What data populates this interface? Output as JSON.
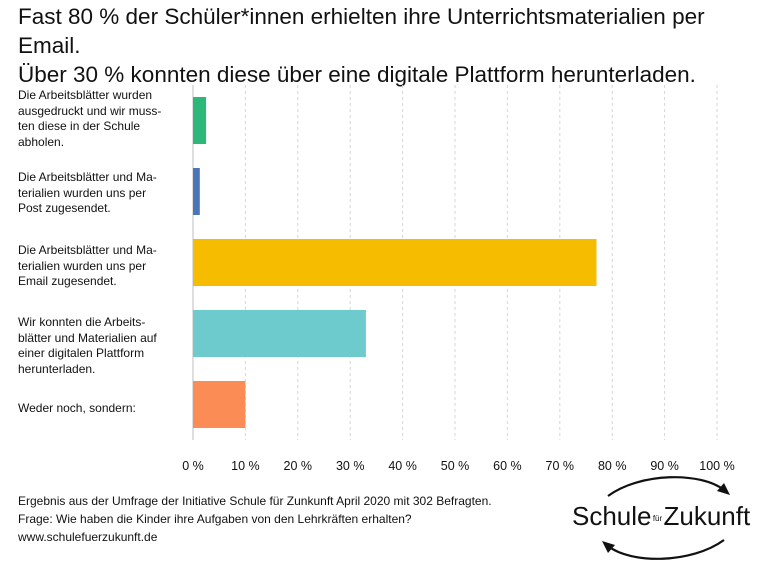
{
  "title_lines": [
    "Fast 80 % der Schüler*innen erhielten ihre Unterrichtsmaterialien per Email.",
    "Über 30 % konnten diese über eine digitale Plattform herunterladen."
  ],
  "chart_data": {
    "type": "bar",
    "orientation": "horizontal",
    "categories": [
      "Die Arbeitsblätter wurden ausgedruckt und wir muss-ten diese in der Schule abholen.",
      "Die Arbeitsblätter und Ma-terialien wurden uns per Post zugesendet.",
      "Die Arbeitsblätter und Ma-terialien wurden uns per Email zugesendet.",
      "Wir konnten die Arbeits-blätter und Materialien auf einer digitalen Plattform herunterladen.",
      "Weder noch, sondern:"
    ],
    "values": [
      2.5,
      1.3,
      77,
      33,
      10
    ],
    "colors": [
      "#2db87a",
      "#4a76b8",
      "#f5bc00",
      "#6ecbcd",
      "#fb8c55"
    ],
    "xlim": [
      0,
      100
    ],
    "xticks": [
      "0 %",
      "10 %",
      "20 %",
      "30 %",
      "40 %",
      "50 %",
      "60 %",
      "70 %",
      "80 %",
      "90 %",
      "100 %"
    ],
    "grid": "vertical, dashed",
    "legend": "none"
  },
  "footer": {
    "line1": "Ergebnis aus der Umfrage der Initiative Schule für Zunkunft  April 2020 mit 302 Befragten.",
    "line2": "Frage: Wie haben die Kinder ihre Aufgaben von den Lehrkräften erhalten?",
    "line3": "www.schulefuerzukunft.de"
  },
  "logo": {
    "word1": "Schule",
    "small": "für",
    "word2": "Zukunft"
  }
}
